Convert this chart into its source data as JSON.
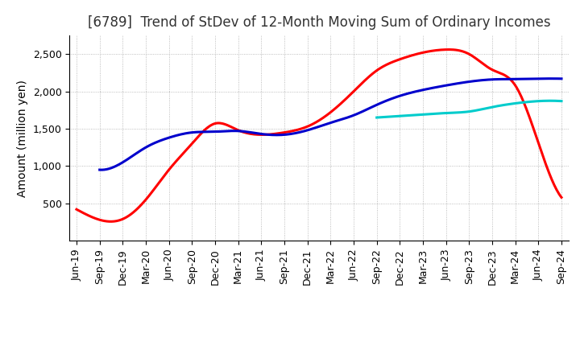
{
  "title": "[6789]  Trend of StDev of 12-Month Moving Sum of Ordinary Incomes",
  "ylabel": "Amount (million yen)",
  "background_color": "#ffffff",
  "x_labels": [
    "Jun-19",
    "Sep-19",
    "Dec-19",
    "Mar-20",
    "Jun-20",
    "Sep-20",
    "Dec-20",
    "Mar-21",
    "Jun-21",
    "Sep-21",
    "Dec-21",
    "Mar-22",
    "Jun-22",
    "Sep-22",
    "Dec-22",
    "Mar-23",
    "Jun-23",
    "Sep-23",
    "Dec-23",
    "Mar-24",
    "Jun-24",
    "Sep-24"
  ],
  "series": {
    "3 Years": {
      "color": "#ff0000",
      "data": [
        420,
        280,
        290,
        550,
        950,
        1300,
        1570,
        1480,
        1420,
        1450,
        1530,
        1720,
        2000,
        2280,
        2430,
        2520,
        2560,
        2500,
        2290,
        2080,
        1310,
        580
      ]
    },
    "5 Years": {
      "color": "#0000cc",
      "data": [
        null,
        950,
        1050,
        1250,
        1380,
        1450,
        1460,
        1470,
        1430,
        1420,
        1480,
        1580,
        1680,
        1820,
        1940,
        2020,
        2080,
        2130,
        2160,
        2165,
        2170,
        2170
      ]
    },
    "7 Years": {
      "color": "#00cccc",
      "data": [
        null,
        null,
        null,
        null,
        null,
        null,
        null,
        null,
        null,
        null,
        null,
        null,
        null,
        1650,
        1670,
        1690,
        1710,
        1730,
        1790,
        1840,
        1870,
        1870
      ]
    },
    "10 Years": {
      "color": "#228B22",
      "data": [
        null,
        null,
        null,
        null,
        null,
        null,
        null,
        null,
        null,
        null,
        null,
        null,
        null,
        null,
        null,
        null,
        null,
        null,
        null,
        null,
        null,
        null
      ]
    }
  },
  "ylim": [
    0,
    2750
  ],
  "yticks": [
    500,
    1000,
    1500,
    2000,
    2500
  ],
  "title_fontsize": 12,
  "axis_fontsize": 10,
  "tick_fontsize": 9,
  "line_width": 2.2
}
